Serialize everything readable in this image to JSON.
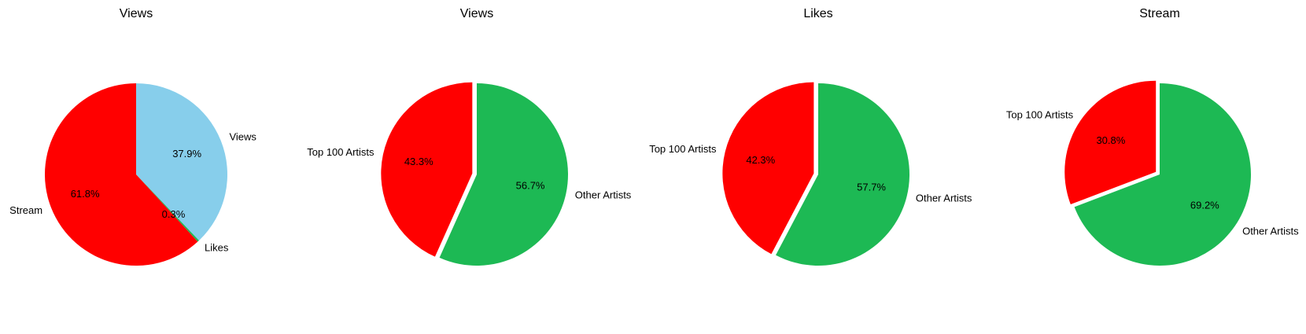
{
  "chart_data": [
    {
      "type": "pie",
      "title": "Views",
      "start_angle_deg": 90,
      "direction": "clockwise",
      "slices": [
        {
          "label": "Views",
          "value": 37.9,
          "pct_label": "37.9%",
          "color": "#87CEEB",
          "explode": 0
        },
        {
          "label": "Likes",
          "value": 0.3,
          "pct_label": "0.3%",
          "color": "#1DB954",
          "explode": 0
        },
        {
          "label": "Stream",
          "value": 61.8,
          "pct_label": "61.8%",
          "color": "#FF0000",
          "explode": 0
        }
      ]
    },
    {
      "type": "pie",
      "title": "Views",
      "start_angle_deg": 90,
      "direction": "clockwise",
      "slices": [
        {
          "label": "Other Artists",
          "value": 56.7,
          "pct_label": "56.7%",
          "color": "#1DB954",
          "explode": 0
        },
        {
          "label": "Top 100 Artists",
          "value": 43.3,
          "pct_label": "43.3%",
          "color": "#FF0000",
          "explode": 0.05
        }
      ]
    },
    {
      "type": "pie",
      "title": "Likes",
      "start_angle_deg": 90,
      "direction": "clockwise",
      "slices": [
        {
          "label": "Other Artists",
          "value": 57.7,
          "pct_label": "57.7%",
          "color": "#1DB954",
          "explode": 0
        },
        {
          "label": "Top 100 Artists",
          "value": 42.3,
          "pct_label": "42.3%",
          "color": "#FF0000",
          "explode": 0.05
        }
      ]
    },
    {
      "type": "pie",
      "title": "Stream",
      "start_angle_deg": 90,
      "direction": "clockwise",
      "slices": [
        {
          "label": "Other Artists",
          "value": 69.2,
          "pct_label": "69.2%",
          "color": "#1DB954",
          "explode": 0
        },
        {
          "label": "Top 100 Artists",
          "value": 30.8,
          "pct_label": "30.8%",
          "color": "#FF0000",
          "explode": 0.05
        }
      ]
    }
  ]
}
